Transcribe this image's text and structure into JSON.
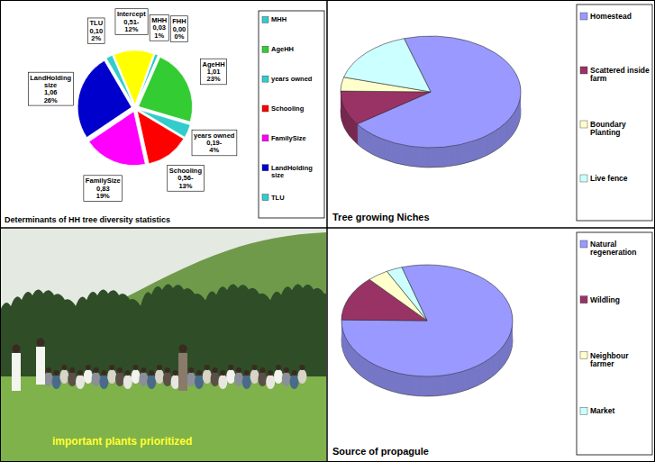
{
  "chart_data": [
    {
      "type": "pie",
      "title": "Determinants of HH tree diversity statistics",
      "categories": [
        "MHH",
        "FHH",
        "AgeHH",
        "years owned",
        "Schooling",
        "FamilySize",
        "LandHolding size",
        "TLU",
        "Intercept"
      ],
      "values": [
        1,
        0,
        23,
        4,
        13,
        19,
        26,
        2,
        12
      ],
      "value_labels": [
        "1%",
        "0%",
        "23%",
        "4%",
        "13%",
        "19%",
        "26%",
        "2%",
        "12%"
      ],
      "coefficients": [
        "0,03",
        "0,00",
        "1,01",
        "0,19-",
        "0,56-",
        "0,83",
        "1,06",
        "0,10",
        "0,51-"
      ],
      "colors": [
        "#33cccc",
        "#ff9900",
        "#33cc33",
        "#33cccc",
        "#ff0000",
        "#ff00ff",
        "#0000cc",
        "#33cccc",
        "#ffff00"
      ],
      "data_labels": true,
      "legend": "right",
      "legend_labels": [
        "MHH",
        "AgeHH",
        "years owned",
        "Schooling",
        "FamilySize",
        "LandHolding size",
        "TLU"
      ],
      "legend_colors": [
        "#33cccc",
        "#33cc33",
        "#33cccc",
        "#ff0000",
        "#ff00ff",
        "#0000cc",
        "#33cccc"
      ]
    },
    {
      "type": "pie3d",
      "title": "Tree growing Niches",
      "categories": [
        "Homestead",
        "Scattered inside farm",
        "Boundary Planting",
        "Live fence"
      ],
      "values": [
        70,
        10,
        4,
        16
      ],
      "colors": [
        "#9999ff",
        "#993366",
        "#ffffcc",
        "#ccffff"
      ],
      "legend": "right"
    },
    {
      "type": "pie3d",
      "title": "Source of propagule",
      "categories": [
        "Natural regeneration",
        "Wildling",
        "Neighbour farmer",
        "Market"
      ],
      "values": [
        80,
        13,
        4,
        3
      ],
      "colors": [
        "#9999ff",
        "#993366",
        "#ffffcc",
        "#ccffff"
      ],
      "legend": "right"
    }
  ],
  "photo": {
    "caption": "important plants prioritized"
  }
}
